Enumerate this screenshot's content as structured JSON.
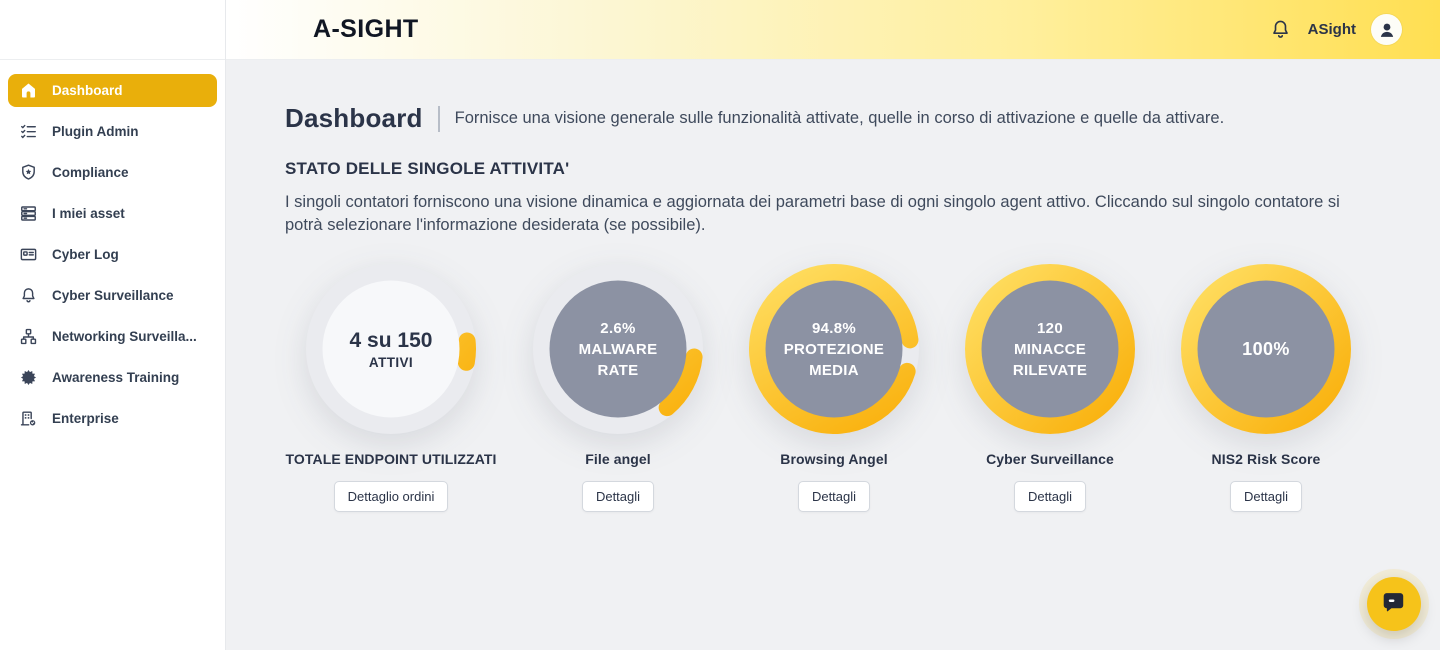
{
  "header": {
    "logo": "A-SIGHT",
    "user_name": "ASight"
  },
  "sidebar": {
    "items": [
      {
        "label": "Dashboard",
        "icon": "home-icon",
        "active": true
      },
      {
        "label": "Plugin Admin",
        "icon": "checklist-icon",
        "active": false
      },
      {
        "label": "Compliance",
        "icon": "shield-star-icon",
        "active": false
      },
      {
        "label": "I miei asset",
        "icon": "servers-icon",
        "active": false
      },
      {
        "label": "Cyber Log",
        "icon": "id-card-icon",
        "active": false
      },
      {
        "label": "Cyber Surveillance",
        "icon": "bell-icon",
        "active": false
      },
      {
        "label": "Networking Surveilla...",
        "icon": "sitemap-icon",
        "active": false
      },
      {
        "label": "Awareness Training",
        "icon": "gear-icon",
        "active": false
      },
      {
        "label": "Enterprise",
        "icon": "building-check-icon",
        "active": false
      }
    ]
  },
  "main": {
    "title": "Dashboard",
    "subtitle": "Fornisce una visione generale sulle funzionalità attivate, quelle in corso di attivazione e quelle da attivare.",
    "section_title": "STATO DELLE SINGOLE ATTIVITA'",
    "section_description": "I singoli contatori forniscono una visione dinamica e aggiornata dei parametri base di ogni singolo agent attivo. Cliccando sul singolo contatore si potrà selezionare l'informazione desiderata (se possibile).",
    "gauges": [
      {
        "lines": [
          "4 su 150",
          "ATTIVI"
        ],
        "label": "TOTALE ENDPOINT UTILIZZATI",
        "button": "Dettaglio ordini",
        "inner": "light",
        "arc": {
          "start_deg": 84,
          "sweep_deg": 16
        }
      },
      {
        "lines": [
          "2.6%",
          "MALWARE",
          "RATE"
        ],
        "label": "File angel",
        "button": "Dettagli",
        "inner": "gray",
        "arc": {
          "start_deg": 96,
          "sweep_deg": 44
        }
      },
      {
        "lines": [
          "94.8%",
          "PROTEZIONE",
          "MEDIA"
        ],
        "label": "Browsing Angel",
        "button": "Dettagli",
        "inner": "gray",
        "arc": {
          "start_deg": 107,
          "sweep_deg": 336
        }
      },
      {
        "lines": [
          "120",
          "MINACCE",
          "RILEVATE"
        ],
        "label": "Cyber Surveillance",
        "button": "Dettagli",
        "inner": "gray",
        "arc": {
          "start_deg": 0,
          "sweep_deg": 360
        }
      },
      {
        "lines": [
          "100%"
        ],
        "label": "NIS2 Risk Score",
        "button": "Dettagli",
        "inner": "gray",
        "arc": {
          "start_deg": 0,
          "sweep_deg": 360
        }
      }
    ]
  },
  "colors": {
    "accent_yellow": "#E9AF0B",
    "ring_light": "#FFE065",
    "ring_dark": "#F9AE08",
    "track": "#EAEBEF",
    "inner_gray": "#8C92A3",
    "inner_light": "#F7F8FA",
    "header_yellow": "#FFDF52",
    "fab_yellow": "#F6C31A"
  }
}
